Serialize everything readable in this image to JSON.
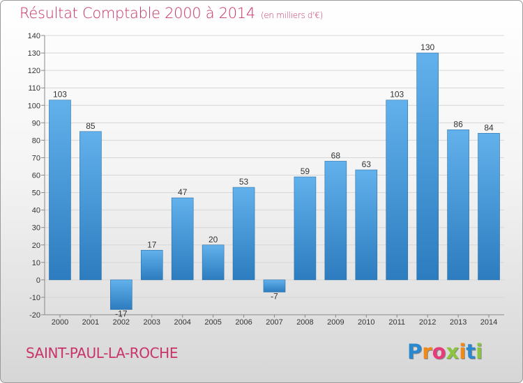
{
  "chart_data": {
    "type": "bar",
    "title": "Résultat Comptable 2000 à 2014",
    "subtitle": "(en milliers d'€)",
    "categories": [
      "2000",
      "2001",
      "2002",
      "2003",
      "2004",
      "2005",
      "2006",
      "2007",
      "2008",
      "2009",
      "2010",
      "2011",
      "2012",
      "2013",
      "2014"
    ],
    "values": [
      103,
      85,
      -17,
      17,
      47,
      20,
      53,
      -7,
      59,
      68,
      63,
      103,
      130,
      86,
      84
    ],
    "labels": [
      "103",
      "85",
      "-17",
      "17",
      "47",
      "20",
      "53",
      "-7",
      "59",
      "68",
      "63",
      "103",
      "130",
      "86",
      "84"
    ],
    "yticks": [
      "-20",
      "-10",
      "0",
      "10",
      "20",
      "30",
      "40",
      "50",
      "60",
      "70",
      "80",
      "90",
      "100",
      "110",
      "120",
      "130",
      "140"
    ],
    "ylim": [
      -20,
      140
    ],
    "xlabel": "",
    "ylabel": "",
    "grid": true,
    "colors": {
      "bar_light": "#62b1ec",
      "bar_dark": "#2c7cbf",
      "grid": "#d6d6d6",
      "axis": "#888888"
    }
  },
  "footer": {
    "commune": "SAINT-PAUL-LA-ROCHE",
    "brand_letters": [
      "P",
      "r",
      "o",
      "x",
      "i",
      "t",
      "i"
    ],
    "brand_colors": [
      "#2a88d0",
      "#f28a1a",
      "#e83c7a",
      "#8bc540",
      "#f28a1a",
      "#2a88d0",
      "#8bc540"
    ]
  }
}
